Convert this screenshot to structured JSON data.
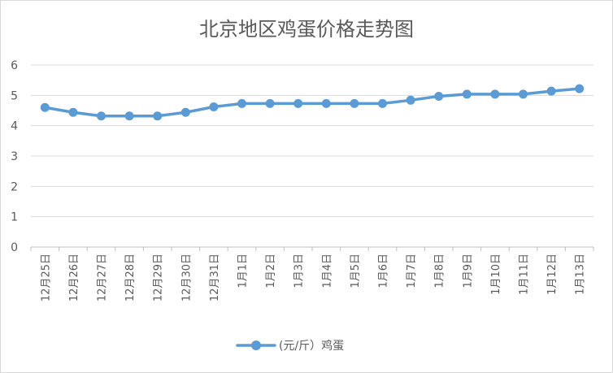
{
  "chart_data": {
    "type": "line",
    "title": "北京地区鸡蛋价格走势图",
    "categories": [
      "12月25日",
      "12月26日",
      "12月27日",
      "12月28日",
      "12月29日",
      "12月30日",
      "12月31日",
      "1月1日",
      "1月2日",
      "1月3日",
      "1月4日",
      "1月5日",
      "1月6日",
      "1月7日",
      "1月8日",
      "1月9日",
      "1月10日",
      "1月11日",
      "1月12日",
      "1月13日"
    ],
    "series": [
      {
        "name": "(元/斤）鸡蛋",
        "values": [
          4.6,
          4.44,
          4.32,
          4.32,
          4.32,
          4.44,
          4.62,
          4.73,
          4.73,
          4.73,
          4.73,
          4.73,
          4.73,
          4.84,
          4.97,
          5.04,
          5.04,
          5.04,
          5.14,
          5.22
        ]
      }
    ],
    "ylim": [
      0,
      6
    ],
    "yticks": [
      0,
      1,
      2,
      3,
      4,
      5,
      6
    ],
    "grid": true,
    "legend": "bottom",
    "color": "#5b9bd5"
  }
}
